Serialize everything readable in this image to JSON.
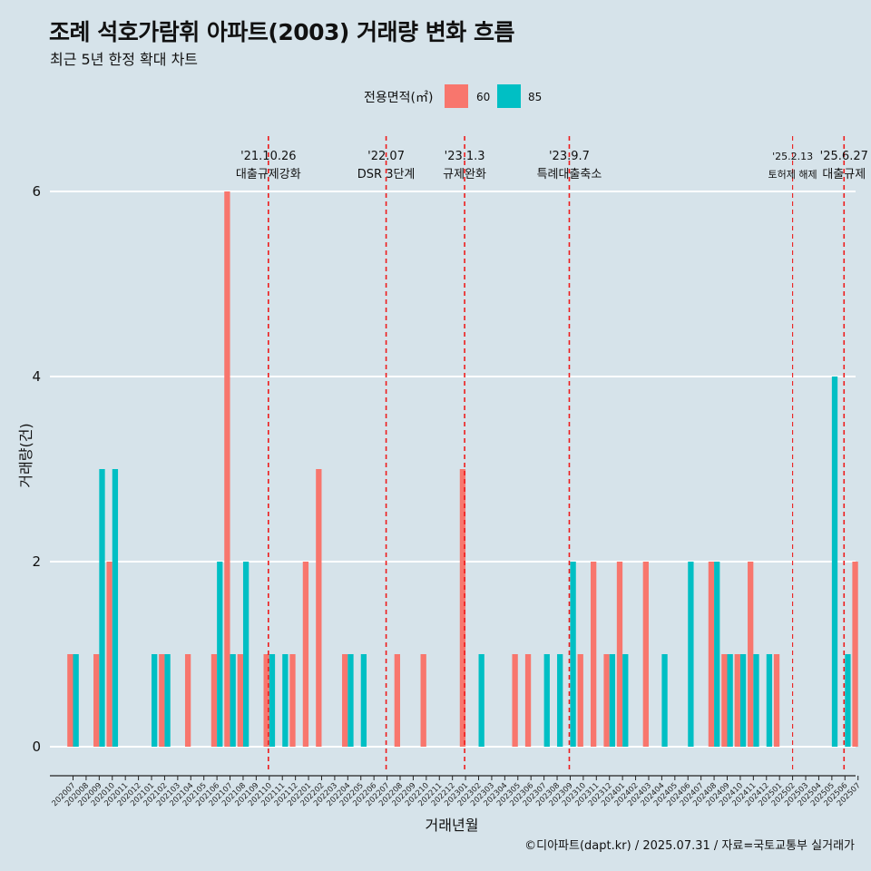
{
  "title": "조례 석호가람휘 아파트(2003) 거래량 변화 흐름",
  "subtitle": "최근 5년 한정 확대 차트",
  "caption": "©디아파트(dapt.kr) / 2025.07.31 / 자료=국토교통부 실거래가",
  "legend": {
    "title": "전용면적(㎡)",
    "items": [
      {
        "label": "60",
        "color": "#f8766d"
      },
      {
        "label": "85",
        "color": "#00bfc4"
      }
    ]
  },
  "chart_data": {
    "type": "bar",
    "title": "조례 석호가람휘 아파트(2003) 거래량 변화 흐름",
    "xlabel": "거래년월",
    "ylabel": "거래량(건)",
    "ylim": [
      0,
      6
    ],
    "y_ticks": [
      0,
      2,
      4,
      6
    ],
    "grid": "horizontal",
    "legend_position": "top",
    "categories": [
      "202007",
      "202008",
      "202009",
      "202010",
      "202011",
      "202012",
      "202101",
      "202102",
      "202103",
      "202104",
      "202105",
      "202106",
      "202107",
      "202108",
      "202109",
      "202110",
      "202111",
      "202112",
      "202201",
      "202202",
      "202203",
      "202204",
      "202205",
      "202206",
      "202207",
      "202208",
      "202209",
      "202210",
      "202211",
      "202212",
      "202301",
      "202302",
      "202303",
      "202304",
      "202305",
      "202306",
      "202307",
      "202308",
      "202309",
      "202310",
      "202311",
      "202312",
      "202401",
      "202402",
      "202403",
      "202404",
      "202405",
      "202406",
      "202407",
      "202408",
      "202409",
      "202410",
      "202411",
      "202412",
      "202501",
      "202502",
      "202503",
      "202504",
      "202505",
      "202506",
      "202507"
    ],
    "series": [
      {
        "name": "60",
        "color": "#f8766d",
        "values": [
          1,
          0,
          1,
          2,
          0,
          0,
          0,
          1,
          0,
          1,
          0,
          1,
          6,
          1,
          0,
          1,
          0,
          1,
          2,
          3,
          0,
          1,
          0,
          0,
          0,
          1,
          0,
          1,
          0,
          0,
          3,
          0,
          0,
          0,
          1,
          1,
          0,
          0,
          0,
          1,
          2,
          1,
          2,
          0,
          2,
          0,
          0,
          0,
          0,
          2,
          1,
          1,
          2,
          0,
          1,
          0,
          0,
          0,
          0,
          0,
          2
        ]
      },
      {
        "name": "85",
        "color": "#00bfc4",
        "values": [
          1,
          0,
          3,
          3,
          0,
          0,
          1,
          1,
          0,
          0,
          0,
          2,
          1,
          2,
          0,
          1,
          1,
          0,
          0,
          0,
          0,
          1,
          1,
          0,
          0,
          0,
          0,
          0,
          0,
          0,
          0,
          1,
          0,
          0,
          0,
          0,
          1,
          1,
          2,
          0,
          0,
          1,
          1,
          0,
          0,
          1,
          0,
          2,
          0,
          2,
          1,
          1,
          1,
          1,
          0,
          0,
          0,
          0,
          4,
          1,
          0
        ]
      }
    ],
    "annotations": [
      {
        "x": "202110",
        "date": "'21.10.26",
        "label": "대출규제강화"
      },
      {
        "x": "202207",
        "date": "'22.07",
        "label": "DSR 3단계"
      },
      {
        "x": "202301",
        "date": "'23.1.3",
        "label": "규제완화"
      },
      {
        "x": "202309",
        "date": "'23.9.7",
        "label": "특례대출축소"
      },
      {
        "x": "202502",
        "date": "'25.2.13",
        "label": "토허제 해제"
      },
      {
        "x": "202506",
        "date": "'25.6.27",
        "label": "대출규제"
      }
    ]
  }
}
